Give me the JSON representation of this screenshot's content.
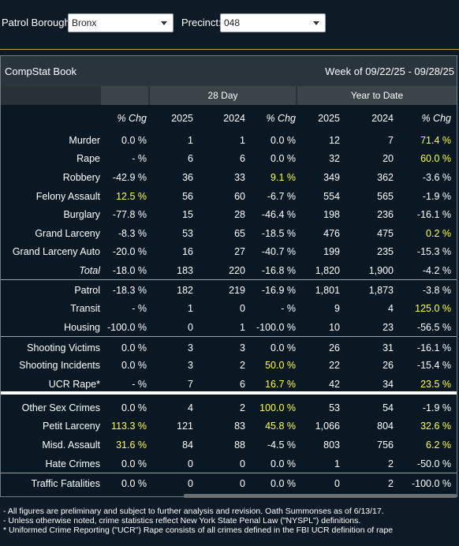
{
  "filters": {
    "borough_label": "Patrol Borough:",
    "borough_value": "Bronx",
    "precinct_label": "Precinct:",
    "precinct_value": "048"
  },
  "panel": {
    "title": "CompStat Book",
    "week": "Week of 09/22/25 - 09/28/25"
  },
  "groups": {
    "day28": "28 Day",
    "ytd": "Year to Date"
  },
  "columns": [
    "% Chg",
    "2025",
    "2024",
    "% Chg",
    "2025",
    "2024",
    "% Chg"
  ],
  "rows": [
    {
      "label": "Murder",
      "cells": [
        "0.0 %",
        "1",
        "1",
        "0.0 %",
        "12",
        "7",
        "71.4 %"
      ],
      "hl": [
        6
      ]
    },
    {
      "label": "Rape",
      "cells": [
        "- %",
        "6",
        "6",
        "0.0 %",
        "32",
        "20",
        "60.0 %"
      ],
      "hl": [
        6
      ]
    },
    {
      "label": "Robbery",
      "cells": [
        "-42.9 %",
        "36",
        "33",
        "9.1 %",
        "349",
        "362",
        "-3.6 %"
      ],
      "hl": [
        3
      ]
    },
    {
      "label": "Felony Assault",
      "cells": [
        "12.5 %",
        "56",
        "60",
        "-6.7 %",
        "554",
        "565",
        "-1.9 %"
      ],
      "hl": [
        0
      ]
    },
    {
      "label": "Burglary",
      "cells": [
        "-77.8 %",
        "15",
        "28",
        "-46.4 %",
        "198",
        "236",
        "-16.1 %"
      ],
      "hl": []
    },
    {
      "label": "Grand Larceny",
      "cells": [
        "-8.3 %",
        "53",
        "65",
        "-18.5 %",
        "476",
        "475",
        "0.2 %"
      ],
      "hl": [
        6
      ]
    },
    {
      "label": "Grand Larceny Auto",
      "cells": [
        "-20.0 %",
        "16",
        "27",
        "-40.7 %",
        "199",
        "235",
        "-15.3 %"
      ],
      "hl": []
    },
    {
      "label": "Total",
      "cells": [
        "-18.0 %",
        "183",
        "220",
        "-16.8 %",
        "1,820",
        "1,900",
        "-4.2 %"
      ],
      "hl": [],
      "italic": true
    },
    {
      "label": "Patrol",
      "cells": [
        "-18.3 %",
        "182",
        "219",
        "-16.9 %",
        "1,801",
        "1,873",
        "-3.8 %"
      ],
      "hl": []
    },
    {
      "label": "Transit",
      "cells": [
        "- %",
        "1",
        "0",
        "- %",
        "9",
        "4",
        "125.0 %"
      ],
      "hl": [
        6
      ]
    },
    {
      "label": "Housing",
      "cells": [
        "-100.0 %",
        "0",
        "1",
        "-100.0 %",
        "10",
        "23",
        "-56.5 %"
      ],
      "hl": []
    },
    {
      "label": "Shooting Victims",
      "cells": [
        "0.0 %",
        "3",
        "3",
        "0.0 %",
        "26",
        "31",
        "-16.1 %"
      ],
      "hl": []
    },
    {
      "label": "Shooting Incidents",
      "cells": [
        "0.0 %",
        "3",
        "2",
        "50.0 %",
        "22",
        "26",
        "-15.4 %"
      ],
      "hl": [
        3
      ]
    },
    {
      "label": "UCR Rape*",
      "cells": [
        "- %",
        "7",
        "6",
        "16.7 %",
        "42",
        "34",
        "23.5 %"
      ],
      "hl": [
        3,
        6
      ]
    },
    {
      "label": "Other Sex Crimes",
      "cells": [
        "0.0 %",
        "4",
        "2",
        "100.0 %",
        "53",
        "54",
        "-1.9 %"
      ],
      "hl": [
        3
      ]
    },
    {
      "label": "Petit Larceny",
      "cells": [
        "113.3 %",
        "121",
        "83",
        "45.8 %",
        "1,066",
        "804",
        "32.6 %"
      ],
      "hl": [
        0,
        3,
        6
      ]
    },
    {
      "label": "Misd. Assault",
      "cells": [
        "31.6 %",
        "84",
        "88",
        "-4.5 %",
        "803",
        "756",
        "6.2 %"
      ],
      "hl": [
        0,
        6
      ]
    },
    {
      "label": "Hate Crimes",
      "cells": [
        "0.0 %",
        "0",
        "0",
        "0.0 %",
        "1",
        "2",
        "-50.0 %"
      ],
      "hl": []
    },
    {
      "label": "Traffic Fatalities",
      "cells": [
        "0.0 %",
        "0",
        "0",
        "0.0 %",
        "0",
        "2",
        "-100.0 %"
      ],
      "hl": []
    }
  ],
  "footnotes": [
    "- All figures are preliminary and subject to further analysis and revision. Oath Summonses as of 6/13/17.",
    "- Unless otherwise noted, crime statistics reflect New York State Penal Law (\"NYSPL\") definitions.",
    "* Uniformed Crime Reporting (\"UCR\") Rape consists of all crimes defined in the FBI UCR definition of rape"
  ],
  "colors": {
    "highlight": "#ffff4d",
    "background": "#0a1823",
    "header": "#29343d"
  }
}
